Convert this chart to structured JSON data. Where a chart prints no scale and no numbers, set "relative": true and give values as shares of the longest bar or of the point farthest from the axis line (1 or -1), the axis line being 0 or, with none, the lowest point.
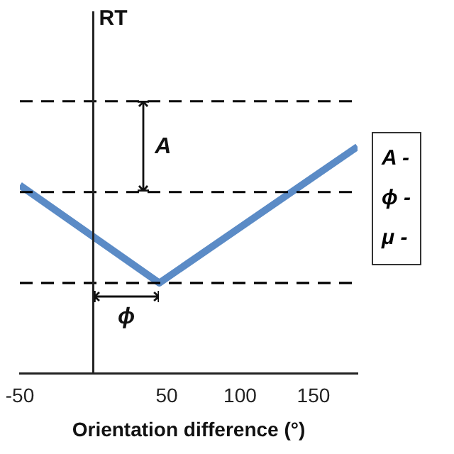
{
  "chart_data": {
    "type": "line",
    "xlabel": "Orientation difference (°)",
    "relative": true,
    "x": [
      -50,
      45,
      180
    ],
    "series": [
      {
        "color": "#5b8bc6",
        "values": [
          0.83,
          0.4,
          1
        ]
      }
    ],
    "xlim": [
      -50,
      180
    ],
    "xticks": [
      -50,
      50,
      100,
      150
    ],
    "tick_labels": "x",
    "grid": false,
    "legend": false,
    "marker": "none",
    "ref_lines": [
      {
        "axis": "y",
        "value": 1.2,
        "color": "#000000",
        "line_style": "dashed"
      },
      {
        "axis": "y",
        "value": 0.8,
        "color": "#000000",
        "line_style": "dashed"
      },
      {
        "axis": "y",
        "value": 0.4,
        "color": "#000000",
        "line_style": "dashed"
      }
    ],
    "annotations": [
      "RT",
      "A",
      "ϕ",
      "A -",
      "ϕ -",
      "μ -"
    ]
  }
}
